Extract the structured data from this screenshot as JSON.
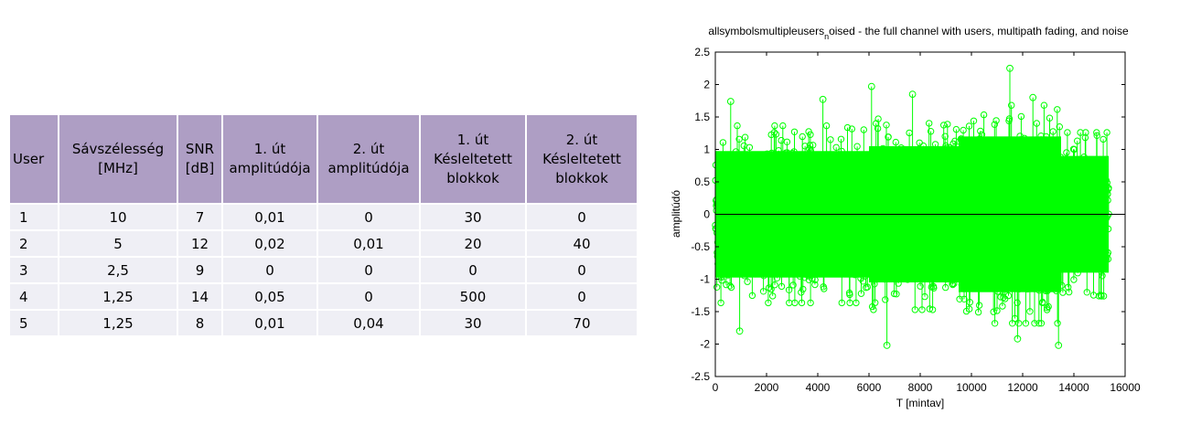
{
  "table": {
    "headers": [
      [
        "User"
      ],
      [
        "Sávszélesség",
        "[MHz]"
      ],
      [
        "SNR",
        "[dB]"
      ],
      [
        "1. út",
        "amplitúdója"
      ],
      [
        "2. út",
        "amplitúdója"
      ],
      [
        "1. út",
        "Késleltetett",
        "blokkok"
      ],
      [
        "2. út",
        "Késleltetett",
        "blokkok"
      ]
    ],
    "rows": [
      [
        "1",
        "10",
        "7",
        "0,01",
        "0",
        "30",
        "0"
      ],
      [
        "2",
        "5",
        "12",
        "0,02",
        "0,01",
        "20",
        "40"
      ],
      [
        "3",
        "2,5",
        "9",
        "0",
        "0",
        "0",
        "0"
      ],
      [
        "4",
        "1,25",
        "14",
        "0,05",
        "0",
        "500",
        "0"
      ],
      [
        "5",
        "1,25",
        "8",
        "0,01",
        "0,04",
        "30",
        "70"
      ]
    ],
    "header_color": "#ae9ec4",
    "row_color": "#efeff5"
  },
  "chart_data": {
    "type": "stem",
    "title_main": "allsymbolsmultipleusers",
    "title_sub": "n",
    "title_rest": "oised - the full channel with users, multipath fading, and noise",
    "xlabel": "T [mintav]",
    "ylabel": "amplitúdó",
    "xlim": [
      0,
      16000
    ],
    "ylim": [
      -2.5,
      2.5
    ],
    "xticks": [
      "0",
      "2000",
      "4000",
      "6000",
      "8000",
      "10000",
      "12000",
      "14000",
      "16000"
    ],
    "yticks": [
      "-2.5",
      "-2",
      "-1.5",
      "-1",
      "-0.5",
      "0",
      "0.5",
      "1",
      "1.5",
      "2",
      "2.5"
    ],
    "n_samples": 15360,
    "marker": "circle",
    "color": "#00ff00",
    "envelope": [
      {
        "x_from": 0,
        "x_to": 6000,
        "typical_abs": 1.3
      },
      {
        "x_from": 6000,
        "x_to": 9500,
        "typical_abs": 1.4
      },
      {
        "x_from": 9500,
        "x_to": 13500,
        "typical_abs": 1.6
      },
      {
        "x_from": 13500,
        "x_to": 15360,
        "typical_abs": 1.2
      }
    ],
    "notable_points": [
      {
        "x": 11500,
        "y": 2.25
      },
      {
        "x": 6100,
        "y": 1.97
      },
      {
        "x": 7700,
        "y": 1.85
      },
      {
        "x": 12400,
        "y": 1.8
      },
      {
        "x": 4200,
        "y": 1.77
      },
      {
        "x": 600,
        "y": 1.74
      },
      {
        "x": 6700,
        "y": -2.02
      },
      {
        "x": 13400,
        "y": -2.02
      },
      {
        "x": 11800,
        "y": -1.92
      },
      {
        "x": 950,
        "y": -1.8
      }
    ]
  }
}
